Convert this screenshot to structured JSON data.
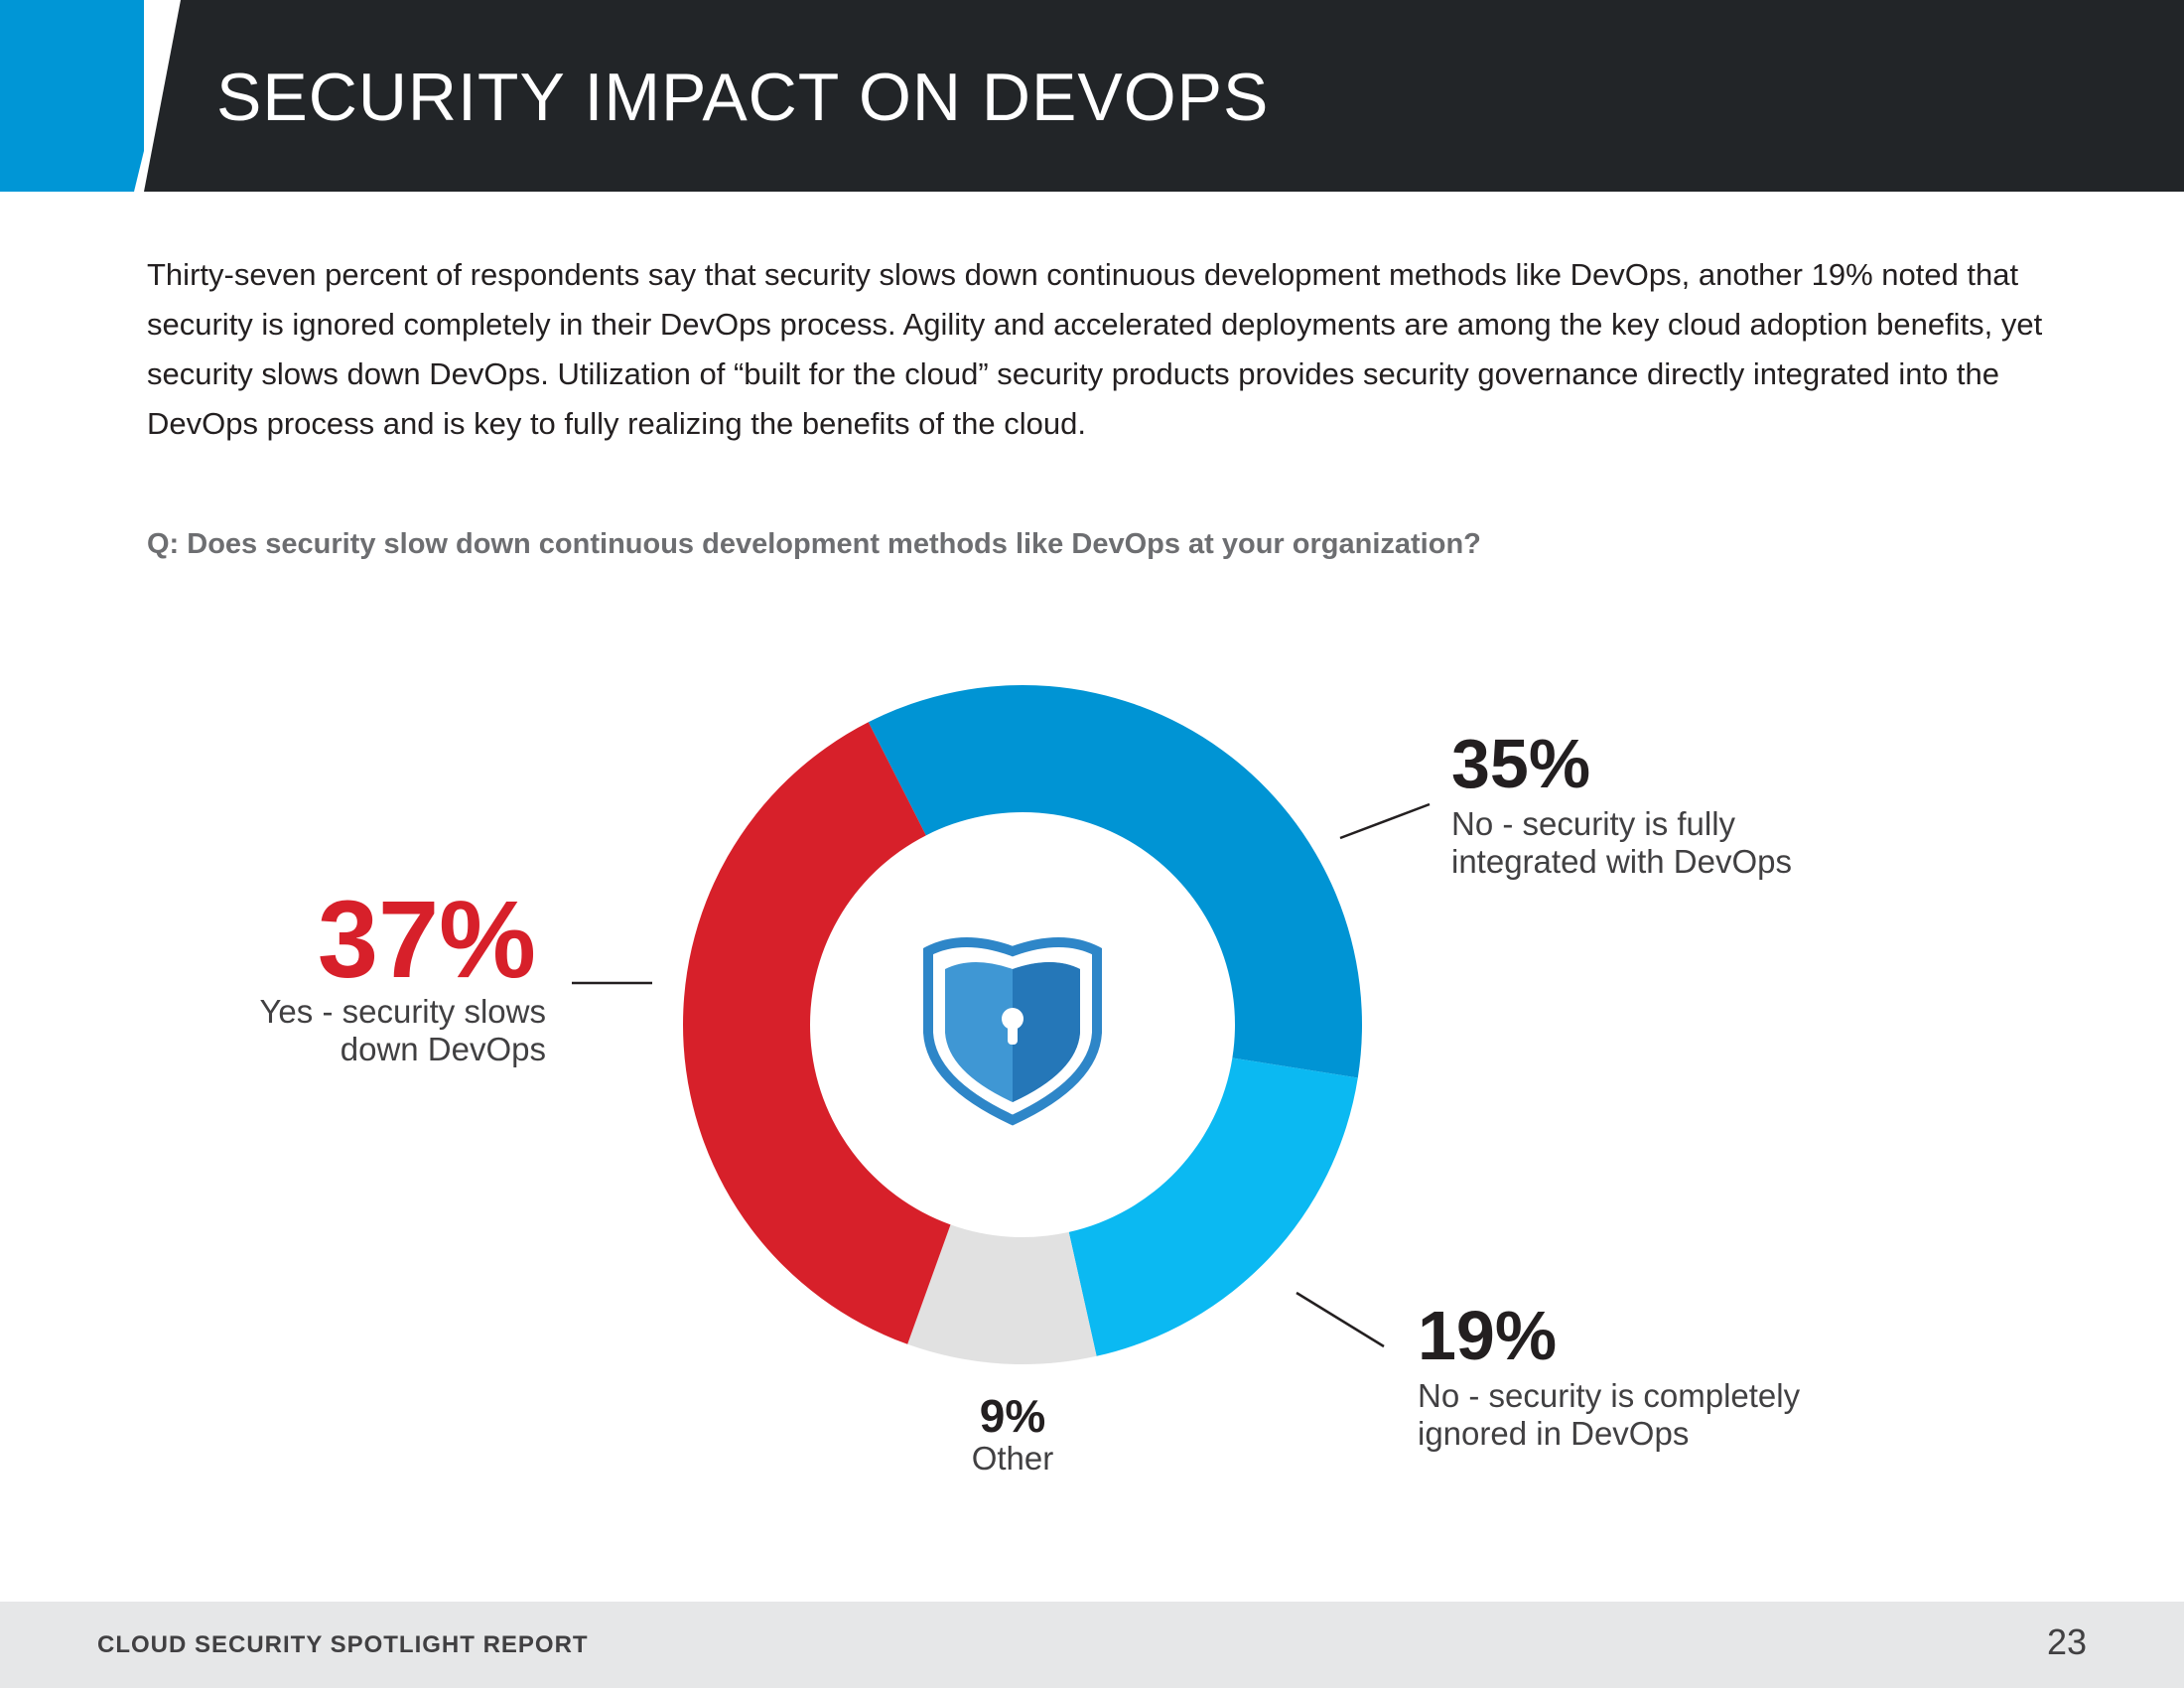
{
  "header": {
    "title": "SECURITY IMPACT ON DEVOPS",
    "accent_color": "#0096d6",
    "bar_color": "#222528"
  },
  "intro": {
    "text": "Thirty-seven percent of respondents say that security slows down continuous development methods like DevOps, another 19% noted that security is ignored completely in their DevOps process. Agility and accelerated deployments are among the key cloud adoption benefits, yet security slows down DevOps. Utilization of “built for the cloud” security products provides security governance directly integrated into the DevOps process and is key to fully realizing the benefits of the cloud."
  },
  "question": "Q: Does security slow down continuous development methods like DevOps at your organization?",
  "center_icon": "shield-lock-icon",
  "chart_data": {
    "type": "pie",
    "variant": "donut",
    "title": "",
    "unit": "%",
    "slices": [
      {
        "key": "no_integrated",
        "label": "No - security is fully integrated with DevOps",
        "value": 35,
        "value_label": "35%",
        "color": "#0094d4"
      },
      {
        "key": "no_ignored",
        "label": "No - security is completely ignored in DevOps",
        "value": 19,
        "value_label": "19%",
        "color": "#0bb9f2"
      },
      {
        "key": "other",
        "label": "Other",
        "value": 9,
        "value_label": "9%",
        "color": "#e1e1e1"
      },
      {
        "key": "yes",
        "label": "Yes - security slows down DevOps",
        "value": 37,
        "value_label": "37%",
        "color": "#d7202a"
      }
    ]
  },
  "labels": {
    "yes": {
      "pct": "37%",
      "line1": "Yes - security slows",
      "line2": "down DevOps"
    },
    "no_integrated": {
      "pct": "35%",
      "line1": "No - security is fully",
      "line2": "integrated with DevOps"
    },
    "no_ignored": {
      "pct": "19%",
      "line1": "No - security is completely",
      "line2": "ignored in DevOps"
    },
    "other": {
      "pct": "9%",
      "line1": "Other"
    }
  },
  "footer": {
    "report_name": "CLOUD SECURITY SPOTLIGHT REPORT",
    "page_number": "23"
  }
}
